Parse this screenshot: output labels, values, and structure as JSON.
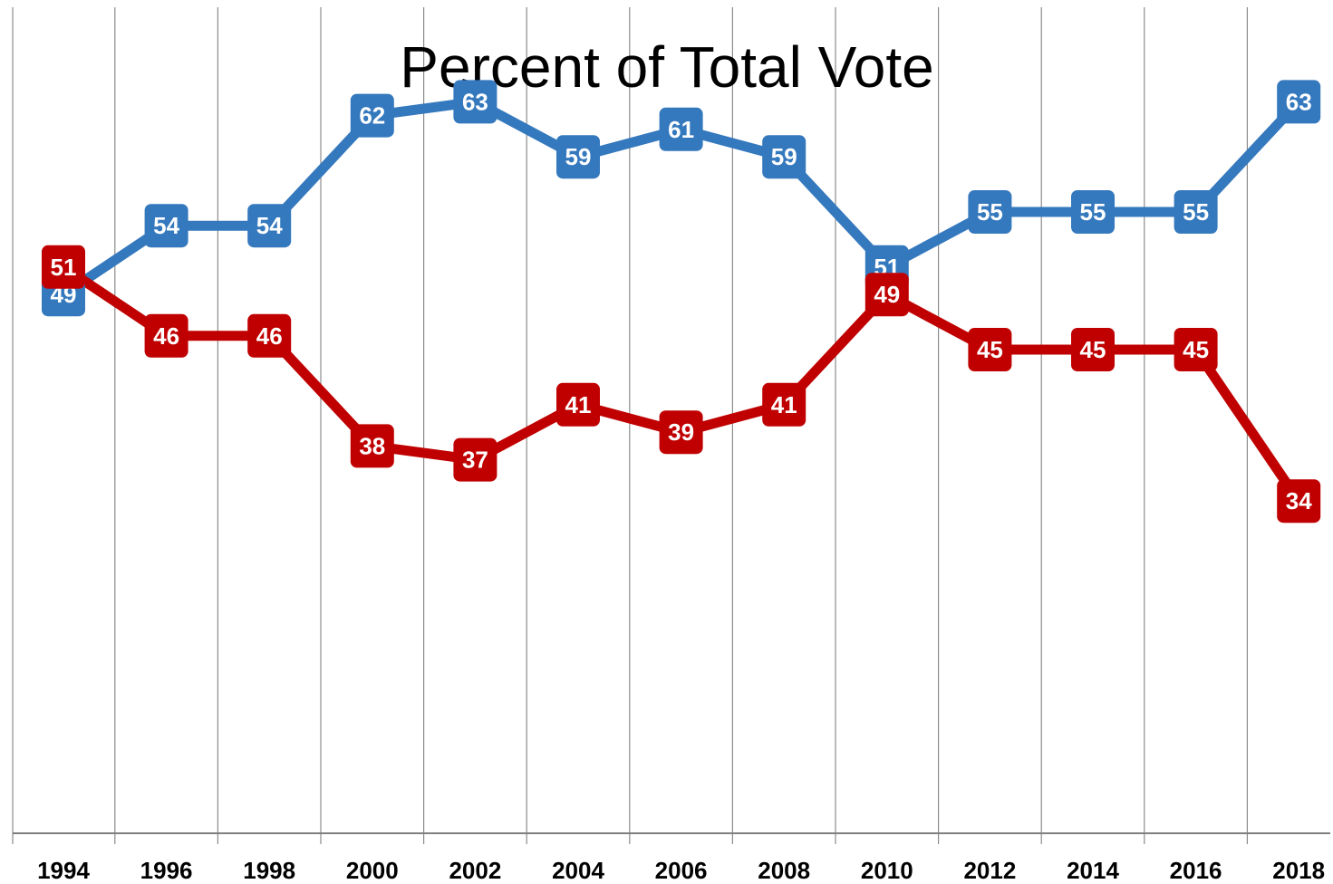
{
  "chart_data": {
    "type": "line",
    "title": "Percent of Total Vote",
    "xlabel": "",
    "ylabel": "",
    "categories": [
      "1994",
      "1996",
      "1998",
      "2000",
      "2002",
      "2004",
      "2006",
      "2008",
      "2010",
      "2012",
      "2014",
      "2016",
      "2018"
    ],
    "series": [
      {
        "color": "#3478bd",
        "values": [
          49,
          54,
          54,
          62,
          63,
          59,
          61,
          59,
          51,
          55,
          55,
          55,
          63
        ]
      },
      {
        "color": "#c00000",
        "values": [
          51,
          46,
          46,
          38,
          37,
          41,
          39,
          41,
          49,
          45,
          45,
          45,
          34
        ]
      }
    ],
    "ylim": [
      20,
      80
    ],
    "grid": "vertical",
    "legend": "none"
  }
}
